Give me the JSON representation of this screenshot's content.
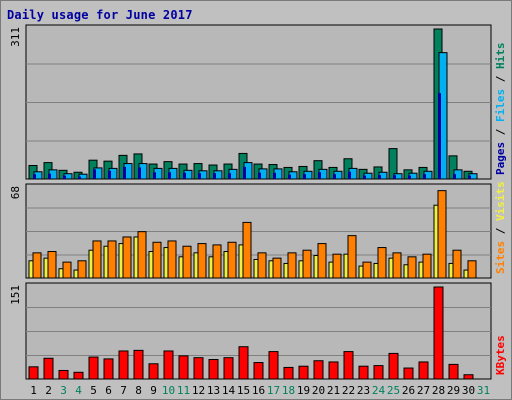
{
  "title": "Daily usage for June 2017",
  "colors": {
    "title": "#0000a0",
    "background": "#c0c0c0",
    "plot_bg": "#b8b8b8",
    "hits": "#00805c",
    "files": "#00b0f0",
    "pages": "#0000a0",
    "visits": "#f0f040",
    "sites": "#ff8000",
    "kbytes": "#ff0000",
    "weekend_label": "#00805c",
    "weekday_label": "#000000"
  },
  "chart_data": [
    {
      "type": "bar",
      "name": "hits-files-pages",
      "x": [
        1,
        2,
        3,
        4,
        5,
        6,
        7,
        8,
        9,
        10,
        11,
        12,
        13,
        14,
        15,
        16,
        17,
        18,
        19,
        20,
        21,
        22,
        23,
        24,
        25,
        26,
        27,
        28,
        29,
        30,
        31
      ],
      "ylim": [
        0,
        311
      ],
      "max_label": "311",
      "legend": [
        "Pages",
        "Files",
        "Hits"
      ],
      "series": [
        {
          "name": "Hits",
          "values": [
            28,
            34,
            18,
            14,
            39,
            37,
            49,
            52,
            31,
            36,
            31,
            32,
            29,
            31,
            53,
            31,
            30,
            24,
            26,
            38,
            24,
            42,
            20,
            25,
            63,
            19,
            24,
            311,
            48,
            16,
            0
          ]
        },
        {
          "name": "Files",
          "values": [
            15,
            19,
            11,
            10,
            23,
            22,
            32,
            32,
            22,
            22,
            18,
            17,
            17,
            20,
            34,
            21,
            21,
            15,
            16,
            20,
            16,
            22,
            12,
            14,
            11,
            12,
            16,
            262,
            19,
            11,
            0
          ]
        },
        {
          "name": "Pages",
          "values": [
            10,
            11,
            7,
            5,
            20,
            17,
            25,
            24,
            14,
            14,
            13,
            12,
            12,
            12,
            25,
            13,
            13,
            9,
            10,
            14,
            10,
            15,
            7,
            8,
            8,
            7,
            10,
            178,
            10,
            7,
            0
          ]
        }
      ]
    },
    {
      "type": "bar",
      "name": "visits-sites",
      "x": [
        1,
        2,
        3,
        4,
        5,
        6,
        7,
        8,
        9,
        10,
        11,
        12,
        13,
        14,
        15,
        16,
        17,
        18,
        19,
        20,
        21,
        22,
        23,
        24,
        25,
        26,
        27,
        28,
        29,
        30,
        31
      ],
      "ylim": [
        0,
        68
      ],
      "max_label": "68",
      "legend": [
        "Sites",
        "Visits"
      ],
      "series": [
        {
          "name": "Visits",
          "values": [
            13,
            15,
            7,
            6,
            21,
            24,
            26,
            31,
            20,
            23,
            16,
            19,
            16,
            20,
            25,
            14,
            13,
            11,
            13,
            17,
            12,
            18,
            9,
            11,
            15,
            10,
            12,
            55,
            11,
            6,
            0
          ]
        },
        {
          "name": "Sites",
          "values": [
            19,
            20,
            12,
            13,
            28,
            28,
            31,
            35,
            27,
            28,
            24,
            26,
            25,
            27,
            42,
            19,
            15,
            19,
            21,
            26,
            18,
            32,
            12,
            23,
            19,
            16,
            18,
            66,
            21,
            13,
            0
          ]
        }
      ]
    },
    {
      "type": "bar",
      "name": "kbytes",
      "x": [
        1,
        2,
        3,
        4,
        5,
        6,
        7,
        8,
        9,
        10,
        11,
        12,
        13,
        14,
        15,
        16,
        17,
        18,
        19,
        20,
        21,
        22,
        23,
        24,
        25,
        26,
        27,
        28,
        29,
        30,
        31
      ],
      "ylim": [
        0,
        151
      ],
      "max_label": "151",
      "legend": [
        "KBytes"
      ],
      "series": [
        {
          "name": "KBytes",
          "values": [
            20,
            34,
            14,
            11,
            36,
            33,
            46,
            47,
            25,
            46,
            38,
            35,
            32,
            35,
            53,
            27,
            45,
            19,
            21,
            30,
            28,
            45,
            21,
            22,
            42,
            18,
            28,
            151,
            24,
            7,
            0
          ]
        }
      ]
    }
  ],
  "x_axis": {
    "labels": [
      "1",
      "2",
      "3",
      "4",
      "5",
      "6",
      "7",
      "8",
      "9",
      "10",
      "11",
      "12",
      "13",
      "14",
      "15",
      "16",
      "17",
      "18",
      "19",
      "20",
      "21",
      "22",
      "23",
      "24",
      "25",
      "26",
      "27",
      "28",
      "29",
      "30",
      "31"
    ],
    "weekend_days": [
      3,
      4,
      10,
      11,
      17,
      18,
      24,
      25,
      31
    ]
  }
}
